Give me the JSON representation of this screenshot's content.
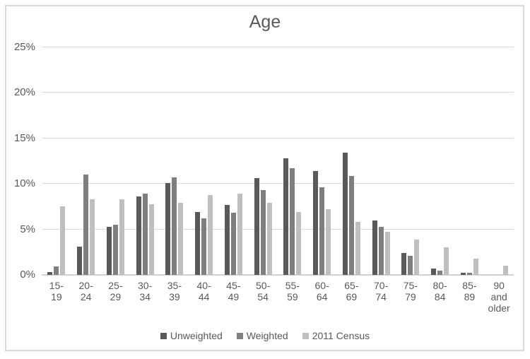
{
  "title": "Age",
  "colors": {
    "unweighted": "#595959",
    "weighted": "#7f7f7f",
    "census": "#bfbfbf",
    "gridline": "#d9d9d9",
    "axis_text": "#595959",
    "frame_border": "#d9d9d9"
  },
  "chart_data": {
    "type": "bar",
    "title": "Age",
    "categories": [
      "15-19",
      "20-24",
      "25-29",
      "30-34",
      "35-39",
      "40-44",
      "45-49",
      "50-54",
      "55-59",
      "60-64",
      "65-69",
      "70-74",
      "75-79",
      "80-84",
      "85-89",
      "90 and older"
    ],
    "category_label_lines": [
      [
        "15-",
        "19"
      ],
      [
        "20-",
        "24"
      ],
      [
        "25-",
        "29"
      ],
      [
        "30-",
        "34"
      ],
      [
        "35-",
        "39"
      ],
      [
        "40-",
        "44"
      ],
      [
        "45-",
        "49"
      ],
      [
        "50-",
        "54"
      ],
      [
        "55-",
        "59"
      ],
      [
        "60-",
        "64"
      ],
      [
        "65-",
        "69"
      ],
      [
        "70-",
        "74"
      ],
      [
        "75-",
        "79"
      ],
      [
        "80-",
        "84"
      ],
      [
        "85-",
        "89"
      ],
      [
        "90",
        "and",
        "older"
      ]
    ],
    "series": [
      {
        "name": "Unweighted",
        "color": "#595959",
        "values": [
          0.3,
          3.1,
          5.3,
          8.6,
          10.1,
          6.9,
          7.7,
          10.6,
          12.8,
          11.4,
          13.4,
          6.0,
          2.4,
          0.7,
          0.2,
          0.0
        ]
      },
      {
        "name": "Weighted",
        "color": "#7f7f7f",
        "values": [
          0.9,
          11.0,
          5.5,
          8.9,
          10.7,
          6.2,
          6.8,
          9.3,
          11.7,
          9.6,
          10.9,
          5.3,
          2.1,
          0.5,
          0.2,
          0.0
        ]
      },
      {
        "name": "2011 Census",
        "color": "#bfbfbf",
        "values": [
          7.5,
          8.3,
          8.3,
          7.8,
          7.9,
          8.8,
          8.9,
          7.9,
          6.9,
          7.2,
          5.8,
          4.7,
          3.9,
          3.0,
          1.8,
          1.0
        ]
      }
    ],
    "xlabel": "",
    "ylabel": "",
    "y_ticks": [
      0,
      5,
      10,
      15,
      20,
      25
    ],
    "y_tick_labels": [
      "0%",
      "5%",
      "10%",
      "15%",
      "20%",
      "25%"
    ],
    "ylim": [
      0,
      25
    ],
    "grid": true,
    "legend_position": "bottom"
  }
}
